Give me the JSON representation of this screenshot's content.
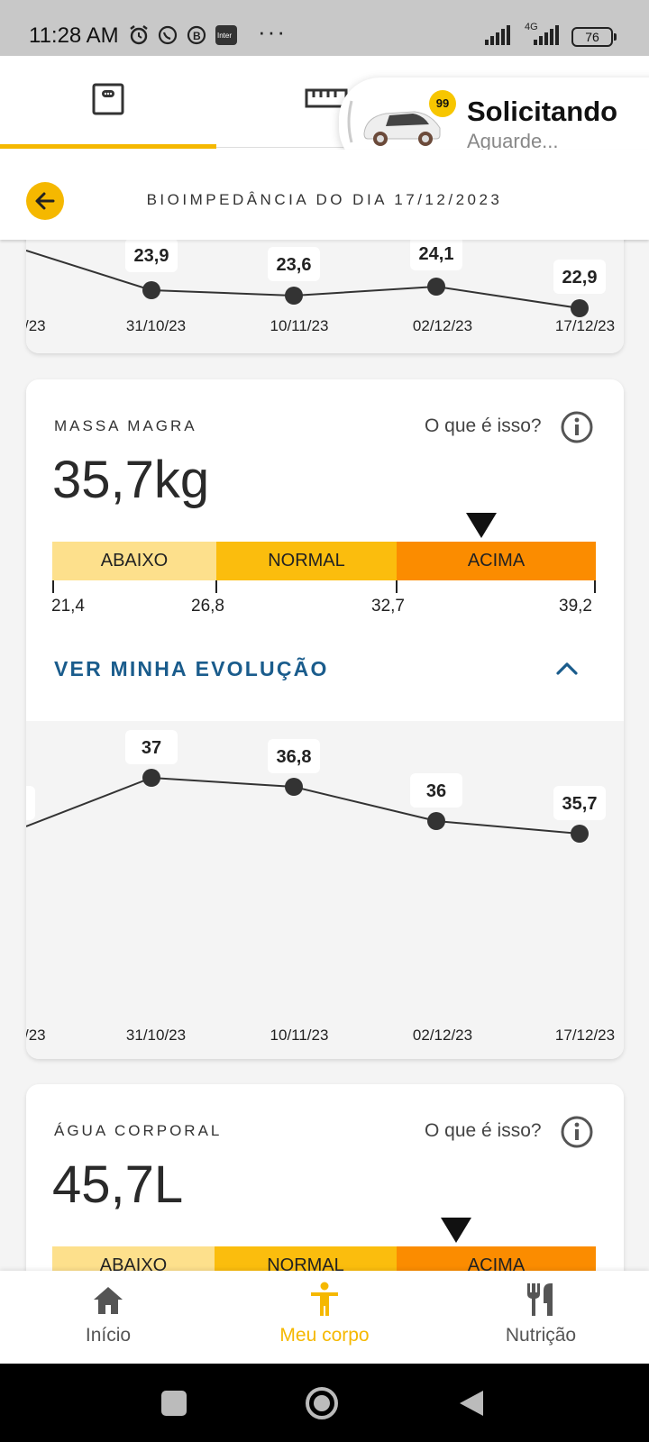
{
  "status_bar": {
    "time": "11:28 AM",
    "network": "4G",
    "battery": "76"
  },
  "notification": {
    "badge": "99",
    "title": "Solicitando",
    "subtitle": "Aguarde..."
  },
  "header": {
    "title": "BIOIMPEDÂNCIA DO DIA 17/12/2023"
  },
  "top_chart": {
    "x_labels": [
      "/23",
      "31/10/23",
      "10/11/23",
      "02/12/23",
      "17/12/23"
    ],
    "data_labels": [
      "23,9",
      "23,6",
      "24,1",
      "22,9"
    ]
  },
  "lean_mass": {
    "label": "MASSA MAGRA",
    "what_is": "O que é isso?",
    "value": "35,7kg",
    "ranges": [
      {
        "label": "ABAIXO",
        "color": "#fde08c"
      },
      {
        "label": "NORMAL",
        "color": "#fbbd0d"
      },
      {
        "label": "ACIMA",
        "color": "#fb8c00"
      }
    ],
    "range_ticks": [
      "21,4",
      "26,8",
      "32,7",
      "39,2"
    ],
    "indicator_value": 35.7,
    "evolution_label": "VER MINHA EVOLUÇÃO",
    "chart": {
      "x_labels": [
        "/23",
        "31/10/23",
        "10/11/23",
        "02/12/23",
        "17/12/23"
      ],
      "data_labels": [
        "37",
        "36,8",
        "36",
        "35,7"
      ]
    }
  },
  "body_water": {
    "label": "ÁGUA CORPORAL",
    "what_is": "O que é isso?",
    "value": "45,7L",
    "ranges": [
      {
        "label": "ABAIXO",
        "color": "#fde08c"
      },
      {
        "label": "NORMAL",
        "color": "#fbbd0d"
      },
      {
        "label": "ACIMA",
        "color": "#fb8c00"
      }
    ]
  },
  "bottom_nav": [
    {
      "label": "Início",
      "icon": "home-icon",
      "active": false
    },
    {
      "label": "Meu corpo",
      "icon": "body-icon",
      "active": true
    },
    {
      "label": "Nutrição",
      "icon": "fork-knife-icon",
      "active": false
    }
  ],
  "colors": {
    "accent": "#f5b800",
    "link": "#1a5c8c"
  }
}
